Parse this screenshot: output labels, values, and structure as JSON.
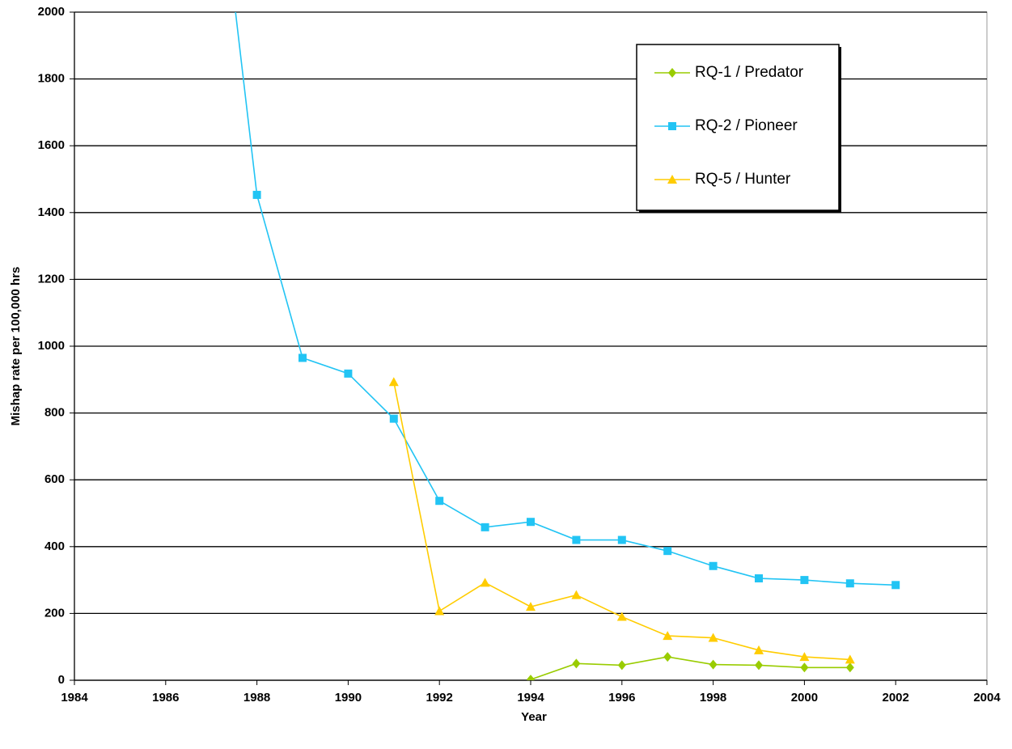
{
  "chart_data": {
    "type": "line",
    "xlabel": "Year",
    "ylabel": "Mishap rate per 100,000 hrs",
    "x": [
      1987,
      1988,
      1989,
      1990,
      1991,
      1992,
      1993,
      1994,
      1995,
      1996,
      1997,
      1998,
      1999,
      2000,
      2001,
      2002
    ],
    "series": [
      {
        "name": "RQ-1 / Predator",
        "color": "#99cc00",
        "marker": "diamond",
        "values": [
          null,
          null,
          null,
          null,
          null,
          null,
          null,
          2,
          50,
          45,
          70,
          47,
          45,
          38,
          38,
          null
        ]
      },
      {
        "name": "RQ-2 / Pioneer",
        "color": "#22c4f4",
        "marker": "square",
        "values": [
          2620,
          1453,
          965,
          918,
          783,
          537,
          458,
          474,
          420,
          420,
          387,
          342,
          305,
          300,
          290,
          285
        ]
      },
      {
        "name": "RQ-5 / Hunter",
        "color": "#ffcc00",
        "marker": "triangle",
        "values": [
          null,
          null,
          null,
          null,
          893,
          207,
          292,
          220,
          255,
          190,
          133,
          127,
          90,
          70,
          62,
          null
        ]
      }
    ],
    "xlim": [
      1984,
      2004
    ],
    "xticks": [
      1984,
      1986,
      1988,
      1990,
      1992,
      1994,
      1996,
      1998,
      2000,
      2002,
      2004
    ],
    "ylim": [
      0,
      2000
    ],
    "yticks": [
      0,
      200,
      400,
      600,
      800,
      1000,
      1200,
      1400,
      1600,
      1800,
      2000
    ],
    "grid": true,
    "legend": "upper right"
  }
}
